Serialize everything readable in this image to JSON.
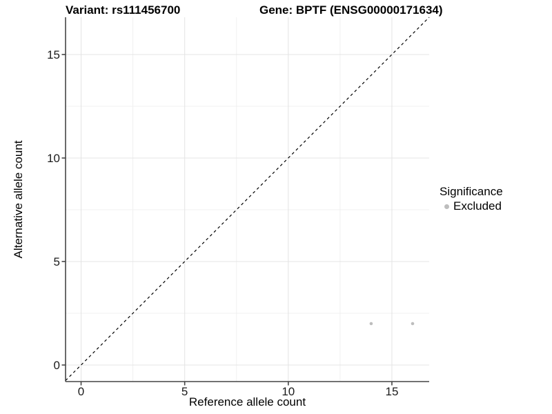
{
  "header": {
    "title_variant": "Variant: rs111456700",
    "title_gene": "Gene: BPTF (ENSG00000171634)"
  },
  "axes": {
    "x_label": "Reference allele count",
    "y_label": "Alternative allele count"
  },
  "legend": {
    "title": "Significance",
    "items": [
      {
        "label": "Excluded",
        "color": "#bdbdbd"
      }
    ]
  },
  "chart_data": {
    "type": "scatter",
    "title": "Variant: rs111456700   Gene: BPTF (ENSG00000171634)",
    "xlabel": "Reference allele count",
    "ylabel": "Alternative allele count",
    "xlim": [
      -0.75,
      16.8
    ],
    "ylim": [
      -0.8,
      16.8
    ],
    "x_ticks": [
      0,
      5,
      10,
      15
    ],
    "y_ticks": [
      0,
      5,
      10,
      15
    ],
    "x_minor_ticks": [
      2.5,
      7.5,
      12.5
    ],
    "y_minor_ticks": [
      2.5,
      7.5,
      12.5
    ],
    "grid": "major and minor, light gray on white panel",
    "legend_position": "right-center",
    "series": [
      {
        "name": "Excluded",
        "color": "#bdbdbd",
        "marker": "circle",
        "points": [
          {
            "x": 14,
            "y": 2
          },
          {
            "x": 16,
            "y": 2
          }
        ]
      }
    ],
    "reference_line": {
      "kind": "identity y=x",
      "style": "dashed",
      "color": "#000000",
      "span": [
        -0.75,
        16.8
      ]
    },
    "style_colors": {
      "grid_major": "#e4e4e4",
      "grid_minor": "#f0f0f0",
      "axis_line": "#444444",
      "tick_label": "#1a1a1a",
      "point": "#bdbdbd"
    }
  }
}
